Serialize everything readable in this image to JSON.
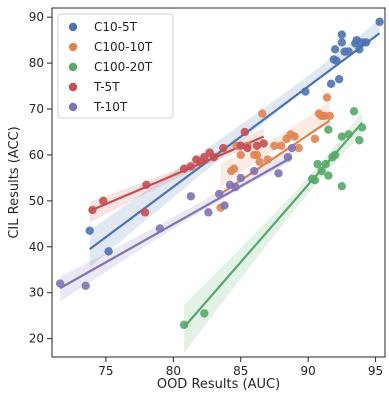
{
  "chart_data": {
    "type": "scatter",
    "xlabel": "OOD Results (AUC)",
    "ylabel": "CIL Results (ACC)",
    "xlim": [
      71,
      95.7
    ],
    "ylim": [
      16,
      92
    ],
    "xticks": [
      75,
      80,
      85,
      90,
      95
    ],
    "yticks": [
      20,
      30,
      40,
      50,
      60,
      70,
      80,
      90
    ],
    "legend_position": "top-left",
    "grid": false,
    "series": [
      {
        "name": "C10-5T",
        "color": "#4C72B0",
        "points": [
          [
            73.8,
            43.5
          ],
          [
            75.2,
            39
          ],
          [
            89.8,
            73.8
          ],
          [
            91.7,
            75.5
          ],
          [
            91.9,
            80.8
          ],
          [
            92.0,
            83
          ],
          [
            92.1,
            80.5
          ],
          [
            92.3,
            76.5
          ],
          [
            92.5,
            84.5
          ],
          [
            92.5,
            86.2
          ],
          [
            92.7,
            82.5
          ],
          [
            93.0,
            82.5
          ],
          [
            93.5,
            84.3
          ],
          [
            93.6,
            85
          ],
          [
            93.8,
            83
          ],
          [
            94.0,
            84.5
          ],
          [
            94.3,
            84.5
          ],
          [
            95.3,
            89
          ]
        ],
        "fit": [
          [
            73.8,
            39.5
          ],
          [
            95.3,
            86.5
          ]
        ]
      },
      {
        "name": "C100-10T",
        "color": "#DD8452",
        "points": [
          [
            83.5,
            48.5
          ],
          [
            84.3,
            56.5
          ],
          [
            84.5,
            57
          ],
          [
            84.7,
            62
          ],
          [
            85.0,
            60
          ],
          [
            85.5,
            62
          ],
          [
            86.0,
            60
          ],
          [
            86.2,
            60
          ],
          [
            86.4,
            58.5
          ],
          [
            86.6,
            69
          ],
          [
            87.0,
            59
          ],
          [
            87.5,
            62
          ],
          [
            88.0,
            62
          ],
          [
            88.4,
            63.5
          ],
          [
            88.7,
            64.5
          ],
          [
            89.0,
            64
          ],
          [
            89.3,
            61.5
          ],
          [
            90.5,
            63.5
          ],
          [
            90.8,
            69
          ],
          [
            91.0,
            68.5
          ],
          [
            91.2,
            68.5
          ],
          [
            91.4,
            72.5
          ],
          [
            91.6,
            68.5
          ]
        ],
        "fit": [
          [
            83.5,
            51.5
          ],
          [
            91.6,
            67.5
          ]
        ]
      },
      {
        "name": "C100-20T",
        "color": "#55A868",
        "points": [
          [
            80.8,
            23
          ],
          [
            82.3,
            25.5
          ],
          [
            90.3,
            54.8
          ],
          [
            90.5,
            54.5
          ],
          [
            90.7,
            58
          ],
          [
            91.0,
            56.5
          ],
          [
            91.3,
            58
          ],
          [
            91.5,
            55.5
          ],
          [
            91.8,
            59.5
          ],
          [
            92.0,
            60
          ],
          [
            92.5,
            53.2
          ],
          [
            92.5,
            64
          ],
          [
            93.0,
            64.5
          ],
          [
            93.4,
            69.5
          ],
          [
            93.8,
            63.2
          ],
          [
            94.0,
            66
          ],
          [
            91.5,
            65.5
          ]
        ],
        "fit": [
          [
            80.8,
            22.5
          ],
          [
            94.0,
            67
          ]
        ]
      },
      {
        "name": "T-5T",
        "color": "#C44E52",
        "points": [
          [
            74.0,
            48
          ],
          [
            74.8,
            50
          ],
          [
            77.9,
            47.5
          ],
          [
            78.0,
            53.5
          ],
          [
            80.8,
            57
          ],
          [
            81.3,
            57.5
          ],
          [
            81.7,
            59
          ],
          [
            82.0,
            58.5
          ],
          [
            82.3,
            59.5
          ],
          [
            82.7,
            60.5
          ],
          [
            83.0,
            59.5
          ],
          [
            83.7,
            61.5
          ],
          [
            85.0,
            62
          ],
          [
            85.3,
            65
          ],
          [
            85.5,
            61.5
          ],
          [
            86.2,
            62
          ],
          [
            86.7,
            62.5
          ]
        ],
        "fit": [
          [
            73.8,
            47.8
          ],
          [
            86.7,
            64
          ]
        ]
      },
      {
        "name": "T-10T",
        "color": "#8172B3",
        "points": [
          [
            71.6,
            32
          ],
          [
            73.5,
            31.5
          ],
          [
            79.0,
            44
          ],
          [
            81.3,
            51
          ],
          [
            82.6,
            47.5
          ],
          [
            83.4,
            51.5
          ],
          [
            83.8,
            49
          ],
          [
            84.2,
            53.5
          ],
          [
            84.6,
            53
          ],
          [
            85.0,
            55
          ],
          [
            86.0,
            56.5
          ],
          [
            87.8,
            56
          ],
          [
            88.5,
            59.5
          ],
          [
            88.8,
            61.5
          ]
        ],
        "fit": [
          [
            71.6,
            31
          ],
          [
            88.8,
            59.5
          ]
        ]
      }
    ]
  }
}
